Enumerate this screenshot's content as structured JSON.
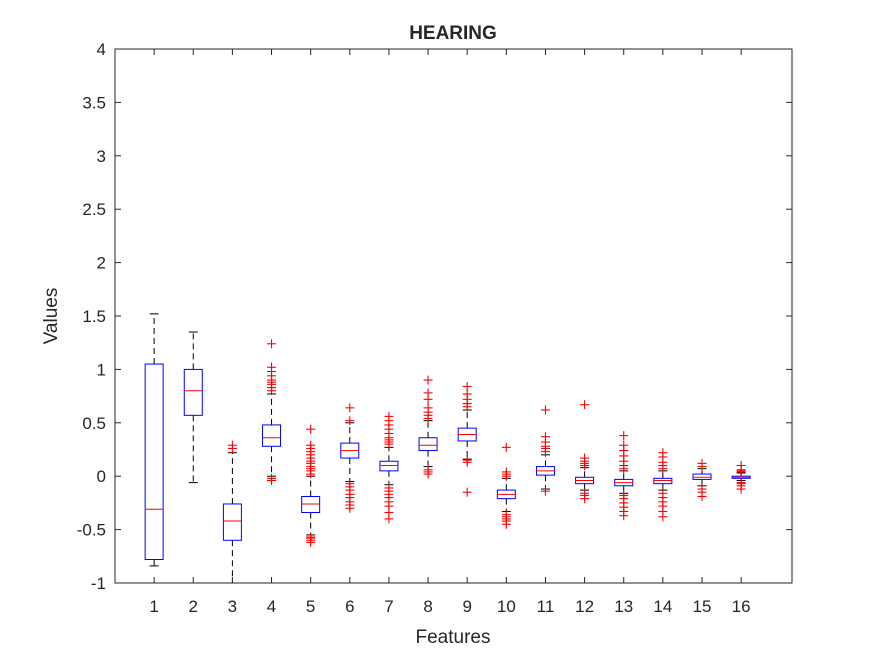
{
  "chart_data": {
    "type": "boxplot",
    "title": "HEARING",
    "xlabel": "Features",
    "ylabel": "Values",
    "ylim": [
      -1,
      4
    ],
    "xlim": [
      0,
      17.3
    ],
    "yticks": [
      "-1",
      "-0.5",
      "0",
      "0.5",
      "1",
      "1.5",
      "2",
      "2.5",
      "3",
      "3.5",
      "4"
    ],
    "grid": false,
    "colors": {
      "box": "#0000ff",
      "median": "#ff0000",
      "outlier": "#ff0000",
      "whisker": "#000000",
      "axis": "#262626"
    },
    "categories": [
      "1",
      "2",
      "3",
      "4",
      "5",
      "6",
      "7",
      "8",
      "9",
      "10",
      "11",
      "12",
      "13",
      "14",
      "15",
      "16"
    ],
    "boxes": [
      {
        "feature": "1",
        "q1": -0.78,
        "median": -0.31,
        "q3": 1.05,
        "whisker_low": -0.84,
        "whisker_high": 1.52,
        "outliers": []
      },
      {
        "feature": "2",
        "q1": 0.57,
        "median": 0.8,
        "q3": 1.0,
        "whisker_low": -0.06,
        "whisker_high": 1.35,
        "outliers": []
      },
      {
        "feature": "3",
        "q1": -0.6,
        "median": -0.42,
        "q3": -0.26,
        "whisker_low": -1.0,
        "whisker_high": 0.22,
        "outliers": [
          0.26,
          0.29
        ]
      },
      {
        "feature": "4",
        "q1": 0.28,
        "median": 0.36,
        "q3": 0.48,
        "whisker_low": 0.0,
        "whisker_high": 0.77,
        "outliers": [
          -0.04,
          -0.02,
          0.8,
          0.83,
          0.86,
          0.88,
          0.9,
          0.94,
          0.98,
          1.02,
          1.24
        ]
      },
      {
        "feature": "5",
        "q1": -0.34,
        "median": -0.26,
        "q3": -0.19,
        "whisker_low": -0.55,
        "whisker_high": 0.0,
        "outliers": [
          -0.62,
          -0.6,
          -0.58,
          -0.57,
          0.02,
          0.05,
          0.07,
          0.09,
          0.12,
          0.14,
          0.17,
          0.2,
          0.23,
          0.26,
          0.29,
          0.44
        ]
      },
      {
        "feature": "6",
        "q1": 0.17,
        "median": 0.24,
        "q3": 0.31,
        "whisker_low": -0.05,
        "whisker_high": 0.5,
        "outliers": [
          -0.3,
          -0.27,
          -0.24,
          -0.2,
          -0.17,
          -0.13,
          -0.1,
          -0.07,
          0.52,
          0.64
        ]
      },
      {
        "feature": "7",
        "q1": 0.05,
        "median": 0.1,
        "q3": 0.14,
        "whisker_low": -0.08,
        "whisker_high": 0.27,
        "outliers": [
          -0.4,
          -0.34,
          -0.28,
          -0.24,
          -0.2,
          -0.17,
          -0.14,
          -0.11,
          0.3,
          0.32,
          0.34,
          0.36,
          0.4,
          0.44,
          0.48,
          0.52,
          0.56
        ]
      },
      {
        "feature": "8",
        "q1": 0.24,
        "median": 0.29,
        "q3": 0.36,
        "whisker_low": 0.09,
        "whisker_high": 0.52,
        "outliers": [
          0.02,
          0.04,
          0.06,
          0.54,
          0.57,
          0.6,
          0.64,
          0.72,
          0.78,
          0.9
        ]
      },
      {
        "feature": "9",
        "q1": 0.33,
        "median": 0.39,
        "q3": 0.45,
        "whisker_low": 0.16,
        "whisker_high": 0.62,
        "outliers": [
          -0.15,
          0.13,
          0.15,
          0.65,
          0.68,
          0.72,
          0.77,
          0.84
        ]
      },
      {
        "feature": "10",
        "q1": -0.21,
        "median": -0.17,
        "q3": -0.13,
        "whisker_low": -0.33,
        "whisker_high": -0.02,
        "outliers": [
          -0.45,
          -0.42,
          -0.4,
          -0.38,
          -0.36,
          0.0,
          0.02,
          0.04,
          0.27
        ]
      },
      {
        "feature": "11",
        "q1": 0.01,
        "median": 0.05,
        "q3": 0.09,
        "whisker_low": -0.12,
        "whisker_high": 0.2,
        "outliers": [
          -0.14,
          0.23,
          0.26,
          0.28,
          0.32,
          0.37,
          0.62
        ]
      },
      {
        "feature": "12",
        "q1": -0.07,
        "median": -0.04,
        "q3": -0.01,
        "whisker_low": -0.13,
        "whisker_high": 0.08,
        "outliers": [
          -0.21,
          -0.18,
          -0.16,
          0.1,
          0.12,
          0.14,
          0.17,
          0.67
        ]
      },
      {
        "feature": "13",
        "q1": -0.09,
        "median": -0.06,
        "q3": -0.03,
        "whisker_low": -0.16,
        "whisker_high": 0.05,
        "outliers": [
          -0.37,
          -0.33,
          -0.29,
          -0.25,
          -0.21,
          -0.18,
          0.07,
          0.1,
          0.14,
          0.19,
          0.24,
          0.29,
          0.38
        ]
      },
      {
        "feature": "14",
        "q1": -0.07,
        "median": -0.04,
        "q3": -0.02,
        "whisker_low": -0.13,
        "whisker_high": 0.05,
        "outliers": [
          -0.38,
          -0.33,
          -0.28,
          -0.24,
          -0.2,
          -0.16,
          0.07,
          0.1,
          0.13,
          0.18,
          0.22
        ]
      },
      {
        "feature": "15",
        "q1": -0.03,
        "median": -0.01,
        "q3": 0.02,
        "whisker_low": -0.09,
        "whisker_high": 0.07,
        "outliers": [
          -0.19,
          -0.15,
          -0.12,
          0.09,
          0.12
        ]
      },
      {
        "feature": "16",
        "q1": -0.02,
        "median": -0.01,
        "q3": 0.0,
        "whisker_low": -0.04,
        "whisker_high": 0.03,
        "outliers": [
          -0.12,
          -0.09,
          -0.07,
          -0.06,
          0.04,
          0.05,
          0.06,
          0.1
        ]
      }
    ]
  }
}
